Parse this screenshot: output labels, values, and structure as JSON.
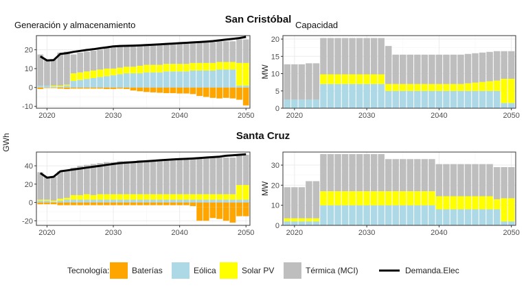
{
  "chart_data": [
    {
      "type": "bar",
      "section": "San Cristóbal",
      "title": "Generación y almacenamiento",
      "ylabel": "GWh",
      "x": [
        2019,
        2020,
        2021,
        2022,
        2023,
        2024,
        2025,
        2026,
        2027,
        2028,
        2029,
        2030,
        2031,
        2032,
        2033,
        2034,
        2035,
        2036,
        2037,
        2038,
        2039,
        2040,
        2041,
        2042,
        2043,
        2044,
        2045,
        2046,
        2047,
        2048,
        2049,
        2050
      ],
      "xticks": [
        2020,
        2030,
        2040,
        2050
      ],
      "ylim": [
        -11,
        27.5
      ],
      "yticks": [
        -10,
        0,
        10,
        20
      ],
      "stacked": true,
      "series": [
        {
          "name": "Baterías",
          "color": "#FFA500",
          "values": [
            -0.8,
            -0.3,
            -0.3,
            -0.6,
            -0.8,
            -0.6,
            -0.6,
            -0.6,
            -0.6,
            -0.6,
            -0.8,
            -0.8,
            -0.6,
            -0.8,
            -1.6,
            -2.0,
            -2.4,
            -2.6,
            -2.8,
            -3.0,
            -3.0,
            -3.2,
            -3.2,
            -3.5,
            -4.5,
            -5.0,
            -5.5,
            -5.8,
            -5.5,
            -5.8,
            -6.5,
            -9.5
          ]
        },
        {
          "name": "Eólica",
          "color": "#ADD8E6",
          "values": [
            1,
            1,
            0.5,
            0.5,
            1,
            3.5,
            4,
            4.5,
            5,
            5.5,
            6,
            6.5,
            7,
            7.5,
            7.5,
            7.5,
            8,
            8,
            8,
            8.5,
            8.5,
            8.5,
            8.5,
            9,
            9,
            9,
            9,
            9.5,
            9.5,
            9.5,
            1,
            1
          ]
        },
        {
          "name": "Solar PV",
          "color": "#FFFF00",
          "values": [
            0,
            0,
            0.5,
            0.5,
            0.5,
            4,
            4,
            4,
            4,
            4,
            4,
            3.5,
            3.5,
            3.5,
            3.5,
            4,
            4,
            4,
            4,
            4,
            4,
            4,
            4,
            4,
            4,
            4,
            4,
            4,
            4,
            4,
            12,
            12
          ]
        },
        {
          "name": "Térmica (MCI)",
          "color": "#BEBEBE",
          "values": [
            16.5,
            13.5,
            14,
            17.5,
            17.5,
            10,
            10.5,
            10.5,
            10.5,
            10.5,
            11,
            12,
            11.5,
            11,
            11,
            11,
            11,
            11,
            11,
            11,
            11,
            11,
            11,
            11,
            11,
            11,
            11,
            11,
            11,
            11,
            12.5,
            12.5
          ]
        }
      ],
      "lines": [
        {
          "name": "Demanda.Elec",
          "color": "#000000",
          "values": [
            16.5,
            14.3,
            14.5,
            17.8,
            18.2,
            18.9,
            19.4,
            19.9,
            20.3,
            20.8,
            21.3,
            21.8,
            22.0,
            22.1,
            22.2,
            22.3,
            22.5,
            22.7,
            22.9,
            23.1,
            23.3,
            23.5,
            23.7,
            23.9,
            24.1,
            24.3,
            24.6,
            25.0,
            25.4,
            25.8,
            26.2,
            26.8
          ]
        }
      ]
    },
    {
      "type": "bar",
      "section": "San Cristóbal",
      "title": "Capacidad",
      "ylabel": "MW",
      "x": [
        2019,
        2020,
        2021,
        2022,
        2023,
        2024,
        2025,
        2026,
        2027,
        2028,
        2029,
        2030,
        2031,
        2032,
        2033,
        2034,
        2035,
        2036,
        2037,
        2038,
        2039,
        2040,
        2041,
        2042,
        2043,
        2044,
        2045,
        2046,
        2047,
        2048,
        2049,
        2050
      ],
      "xticks": [
        2020,
        2030,
        2040,
        2050
      ],
      "ylim": [
        0,
        21
      ],
      "yticks": [
        0,
        5,
        10,
        15,
        20
      ],
      "stacked": true,
      "series": [
        {
          "name": "Eólica",
          "color": "#ADD8E6",
          "values": [
            2.5,
            2.5,
            2.5,
            2.5,
            2.5,
            7,
            7,
            7,
            7,
            7,
            7,
            7,
            7,
            7,
            5,
            5,
            5,
            5,
            5,
            5,
            5,
            5,
            5,
            5,
            5,
            5,
            5,
            5,
            5,
            5,
            1.5,
            1.5
          ]
        },
        {
          "name": "Solar PV",
          "color": "#FFFF00",
          "values": [
            0,
            0,
            0,
            0,
            0,
            2.8,
            2.8,
            2.8,
            2.8,
            2.8,
            2.8,
            2.8,
            2.8,
            2.8,
            2,
            2,
            2,
            2,
            2,
            2,
            2,
            2,
            2,
            2,
            2,
            2.2,
            2.4,
            2.6,
            2.8,
            3,
            7,
            7
          ]
        },
        {
          "name": "Térmica (MCI)",
          "color": "#BEBEBE",
          "values": [
            10.2,
            10.2,
            10.2,
            10.5,
            10.5,
            10.5,
            10.5,
            10.5,
            10.5,
            10.5,
            10.5,
            10.5,
            10.5,
            10.5,
            11,
            8.5,
            8.5,
            8.5,
            8.5,
            8.5,
            8.5,
            8.5,
            8.5,
            8.5,
            8.5,
            8.5,
            8.5,
            8.5,
            8.5,
            8.5,
            8,
            8
          ]
        }
      ]
    },
    {
      "type": "bar",
      "section": "Santa Cruz",
      "title": "",
      "ylabel": "GWh",
      "x": [
        2019,
        2020,
        2021,
        2022,
        2023,
        2024,
        2025,
        2026,
        2027,
        2028,
        2029,
        2030,
        2031,
        2032,
        2033,
        2034,
        2035,
        2036,
        2037,
        2038,
        2039,
        2040,
        2041,
        2042,
        2043,
        2044,
        2045,
        2046,
        2047,
        2048,
        2049,
        2050
      ],
      "xticks": [
        2020,
        2030,
        2040,
        2050
      ],
      "ylim": [
        -25,
        55
      ],
      "yticks": [
        -20,
        0,
        20,
        40
      ],
      "stacked": true,
      "series": [
        {
          "name": "Baterías",
          "color": "#FFA500",
          "values": [
            -2,
            -2,
            -2,
            -3,
            -3,
            -3,
            -3,
            -3,
            -3,
            -3,
            -3,
            -3,
            -3,
            -3,
            -3,
            -3,
            -3,
            -3,
            -3,
            -3,
            -3,
            -3,
            -3,
            -4,
            -5,
            -5,
            -5,
            -5,
            -5,
            -5,
            -5,
            -5
          ]
        },
        {
          "name": "Eólica",
          "color": "#ADD8E6",
          "values": [
            2,
            2,
            1,
            2,
            3,
            3,
            3,
            3,
            3,
            3,
            3,
            3,
            3,
            3,
            3,
            3,
            3,
            3,
            3,
            3,
            3,
            3,
            3,
            3,
            3,
            3,
            3,
            3,
            3,
            3,
            3,
            3
          ]
        },
        {
          "name": "Solar PV",
          "color": "#FFFF00",
          "values": [
            1,
            1,
            1,
            2,
            2,
            5,
            5,
            6,
            5,
            6,
            6,
            6,
            6,
            6,
            6,
            6,
            6,
            6,
            6,
            6,
            6,
            6,
            6,
            6,
            6,
            6,
            6,
            6,
            6,
            6,
            16,
            16
          ]
        },
        {
          "name": "Térmica (MCI)",
          "color": "#BEBEBE",
          "values": [
            30,
            25,
            26,
            30,
            30,
            30,
            32,
            32,
            34,
            34,
            35,
            35,
            36,
            36,
            36,
            37,
            37,
            37,
            37,
            37,
            38,
            38,
            38,
            39,
            40,
            40,
            40,
            40,
            40,
            40,
            33,
            33
          ]
        }
      ],
      "extra_negative": [
        {
          "name": "Baterías",
          "values": [
            0,
            0,
            0,
            0,
            0,
            0,
            0,
            0,
            0,
            0,
            0,
            0,
            0,
            0,
            0,
            0,
            0,
            0,
            0,
            0,
            0,
            0,
            0,
            0,
            -15,
            -15,
            -12,
            -13,
            -15,
            -17,
            -10,
            -10
          ]
        }
      ],
      "lines": [
        {
          "name": "Demanda.Elec",
          "color": "#000000",
          "values": [
            32,
            27,
            28,
            34,
            35,
            36,
            37,
            38,
            39,
            40,
            41,
            42,
            43,
            43.5,
            44,
            44.5,
            45,
            45.5,
            46,
            46.5,
            47,
            47.3,
            47.6,
            48,
            48.5,
            49,
            49.5,
            50,
            51,
            51.5,
            52,
            52.5
          ]
        }
      ]
    },
    {
      "type": "bar",
      "section": "Santa Cruz",
      "title": "",
      "ylabel": "MW",
      "x": [
        2019,
        2020,
        2021,
        2022,
        2023,
        2024,
        2025,
        2026,
        2027,
        2028,
        2029,
        2030,
        2031,
        2032,
        2033,
        2034,
        2035,
        2036,
        2037,
        2038,
        2039,
        2040,
        2041,
        2042,
        2043,
        2044,
        2045,
        2046,
        2047,
        2048,
        2049,
        2050
      ],
      "xticks": [
        2020,
        2030,
        2040,
        2050
      ],
      "ylim": [
        0,
        36.5
      ],
      "yticks": [
        0,
        10,
        20,
        30
      ],
      "stacked": true,
      "series": [
        {
          "name": "Eólica",
          "color": "#ADD8E6",
          "values": [
            2,
            2,
            2,
            2,
            2,
            10,
            10,
            10,
            10,
            10,
            10,
            10,
            10,
            10,
            10,
            10,
            10,
            10,
            10,
            10,
            10,
            8,
            8,
            8,
            8,
            8,
            8,
            8,
            8,
            8,
            2,
            2
          ]
        },
        {
          "name": "Solar PV",
          "color": "#FFFF00",
          "values": [
            1.5,
            1.5,
            1.5,
            1.5,
            1.5,
            7,
            7,
            7,
            7,
            7,
            7,
            7,
            7,
            7,
            7,
            7,
            7,
            7,
            7,
            7,
            7,
            6.5,
            6.5,
            6.5,
            6.5,
            6.5,
            6.5,
            6.5,
            6.5,
            5,
            11.5,
            11.5
          ]
        },
        {
          "name": "Térmica (MCI)",
          "color": "#BEBEBE",
          "values": [
            15.5,
            15.5,
            15.5,
            18.5,
            18.5,
            18.5,
            18.5,
            18.5,
            18.5,
            18.5,
            18.5,
            18.5,
            18.5,
            18.5,
            16,
            16,
            16,
            16,
            16,
            16,
            16,
            16,
            16,
            16,
            16,
            16,
            16,
            16,
            16,
            16,
            15.5,
            15.5
          ]
        }
      ]
    }
  ],
  "labels": {
    "section_top": "San Cristóbal",
    "section_bottom": "Santa Cruz",
    "panel_gen": "Generación y almacenamiento",
    "panel_cap": "Capacidad",
    "y_shared": "GWh",
    "y_mw": "MW"
  },
  "legend": {
    "title": "Tecnología:",
    "items": [
      {
        "label": "Baterías",
        "color": "#FFA500",
        "kind": "fill"
      },
      {
        "label": "Eólica",
        "color": "#ADD8E6",
        "kind": "fill"
      },
      {
        "label": "Solar PV",
        "color": "#FFFF00",
        "kind": "fill"
      },
      {
        "label": "Térmica (MCI)",
        "color": "#BEBEBE",
        "kind": "fill"
      },
      {
        "label": "Demanda.Elec",
        "color": "#000000",
        "kind": "line"
      }
    ]
  },
  "style": {
    "panel_bg": "#ffffff",
    "grid_major": "#ebebeb",
    "grid_minor": "#f5f5f5",
    "border": "#333333"
  }
}
